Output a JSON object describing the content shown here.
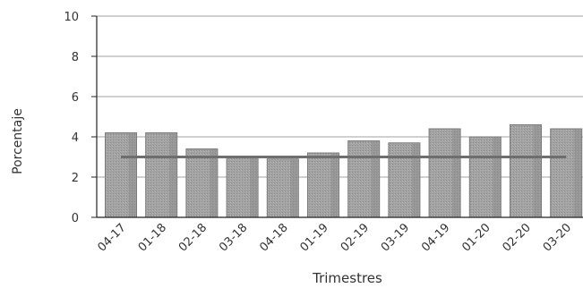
{
  "chart_data": {
    "type": "bar",
    "xlabel": "Trimestres",
    "ylabel": "Porcentaje",
    "categories": [
      "04-17",
      "01-18",
      "02-18",
      "03-18",
      "04-18",
      "01-19",
      "02-19",
      "03-19",
      "04-19",
      "01-20",
      "02-20",
      "03-20"
    ],
    "series": [
      {
        "values": [
          4.2,
          4.2,
          3.4,
          3.0,
          2.9,
          3.2,
          3.8,
          3.7,
          4.4,
          4.0,
          4.6,
          4.4
        ]
      }
    ],
    "reference_line": {
      "value": 3.0
    },
    "ylim": [
      0,
      10
    ],
    "yticks": [
      0,
      2,
      4,
      6,
      8,
      10
    ],
    "grid": true,
    "legend": "none",
    "colors": {
      "bar": "#9a9a9a",
      "bar_stroke": "#7a7a7a",
      "reference_line": "#6e6e6e",
      "grid": "#a0a0a0"
    }
  }
}
